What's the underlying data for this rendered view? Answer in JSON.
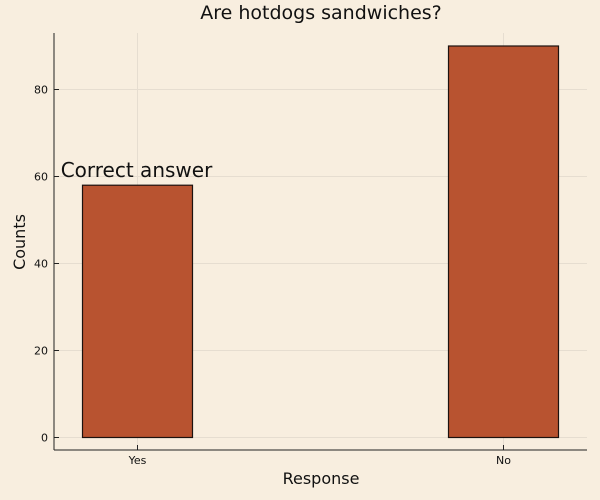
{
  "chart_data": {
    "type": "bar",
    "title": "Are hotdogs sandwiches?",
    "xlabel": "Response",
    "ylabel": "Counts",
    "categories": [
      "Yes",
      "No"
    ],
    "values": [
      58,
      90
    ],
    "ylim": [
      0,
      93
    ],
    "yticks": [
      0,
      20,
      40,
      60,
      80
    ],
    "grid": true,
    "legend": "none",
    "bar_color": "#b85330",
    "background": "#f8eedf",
    "annotations": [
      {
        "text": "Correct answer",
        "category": "Yes"
      }
    ]
  }
}
